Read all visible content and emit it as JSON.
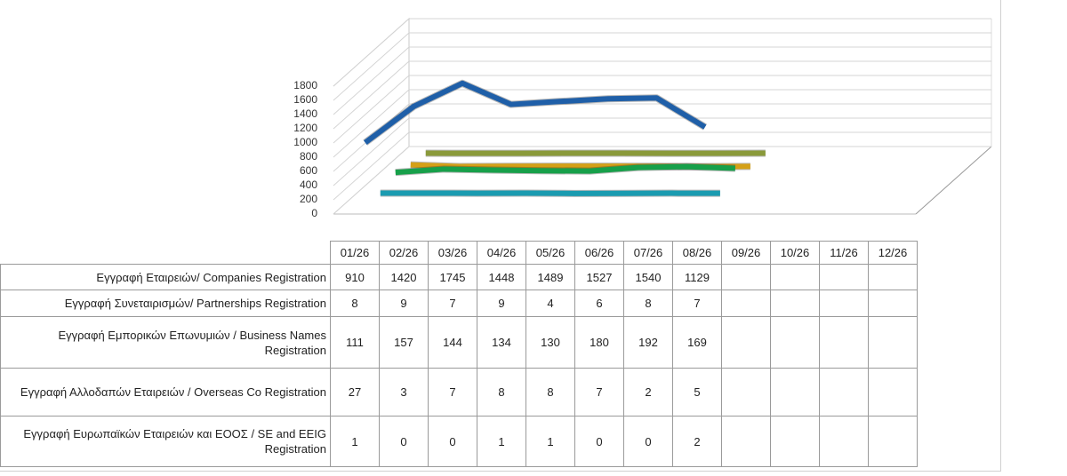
{
  "chart_data": {
    "type": "line",
    "categories": [
      "01/26",
      "02/26",
      "03/26",
      "04/26",
      "05/26",
      "06/26",
      "07/26",
      "08/26",
      "09/26",
      "10/26",
      "11/26",
      "12/26"
    ],
    "ylim": [
      0,
      1800
    ],
    "yticks": [
      0,
      200,
      400,
      600,
      800,
      1000,
      1200,
      1400,
      1600,
      1800
    ],
    "grid": true,
    "series": [
      {
        "name": "Εγγραφή Εταιρειών/ Companies Registration",
        "color": "#1f5fa8",
        "values": [
          910,
          1420,
          1745,
          1448,
          1489,
          1527,
          1540,
          1129,
          null,
          null,
          null,
          null
        ]
      },
      {
        "name": "Εγγραφή Συνεταιρισμών/ Partnerships Registration",
        "color": "#1a9bb0",
        "values": [
          8,
          9,
          7,
          9,
          4,
          6,
          8,
          7,
          null,
          null,
          null,
          null
        ]
      },
      {
        "name": "Εγγραφή Εμπορικών Επωνυμιών / Business Names Registration",
        "color": "#17a04a",
        "values": [
          111,
          157,
          144,
          134,
          130,
          180,
          192,
          169,
          null,
          null,
          null,
          null
        ]
      },
      {
        "name": "Εγγραφή Αλλοδαπών Εταιρειών / Overseas Co Registration",
        "color": "#d4a017",
        "values": [
          27,
          3,
          7,
          8,
          8,
          7,
          2,
          5,
          null,
          null,
          null,
          null
        ]
      },
      {
        "name": "Εγγραφή Ευρωπαϊκών Εταιρειών και ΕΟΟΣ / SE and EEIG Registration",
        "color": "#8a9a3a",
        "values": [
          1,
          0,
          0,
          1,
          1,
          0,
          0,
          2,
          null,
          null,
          null,
          null
        ]
      }
    ]
  }
}
